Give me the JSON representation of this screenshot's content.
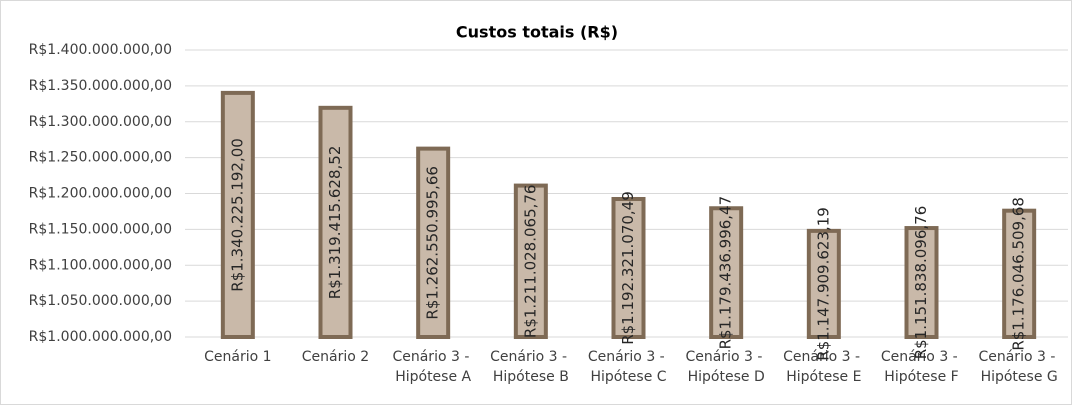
{
  "chart_data": {
    "type": "bar",
    "title": "Custos totais (R$)",
    "categories": [
      "Cenário 1",
      "Cenário 2",
      "Cenário 3 - Hipótese A",
      "Cenário 3 - Hipótese B",
      "Cenário 3 - Hipótese C",
      "Cenário 3 - Hipótese D",
      "Cenário 3 - Hipótese E",
      "Cenário 3 - Hipótese F",
      "Cenário 3 - Hipótese G"
    ],
    "values": [
      1340225192.0,
      1319415628.52,
      1262550995.66,
      1211028065.76,
      1192321070.49,
      1179436996.47,
      1147909623.19,
      1151838096.76,
      1176046509.68
    ],
    "value_labels": [
      "R$1.340.225.192,00",
      "R$1.319.415.628,52",
      "R$1.262.550.995,66",
      "R$1.211.028.065,76",
      "R$1.192.321.070,49",
      "R$1.179.436.996,47",
      "R$1.147.909.623,19",
      "R$1.151.838.096,76",
      "R$1.176.046.509,68"
    ],
    "color": "#c9b9a9",
    "edge_color": "#7e6a55",
    "ylim": [
      1000000000,
      1400000000
    ],
    "yticks": [
      {
        "value": 1000000000,
        "label": "R$1.000.000.000,00"
      },
      {
        "value": 1050000000,
        "label": "R$1.050.000.000,00"
      },
      {
        "value": 1100000000,
        "label": "R$1.100.000.000,00"
      },
      {
        "value": 1150000000,
        "label": "R$1.150.000.000,00"
      },
      {
        "value": 1200000000,
        "label": "R$1.200.000.000,00"
      },
      {
        "value": 1250000000,
        "label": "R$1.250.000.000,00"
      },
      {
        "value": 1300000000,
        "label": "R$1.300.000.000,00"
      },
      {
        "value": 1350000000,
        "label": "R$1.350.000.000,00"
      },
      {
        "value": 1400000000,
        "label": "R$1.400.000.000,00"
      }
    ],
    "grid": true
  }
}
